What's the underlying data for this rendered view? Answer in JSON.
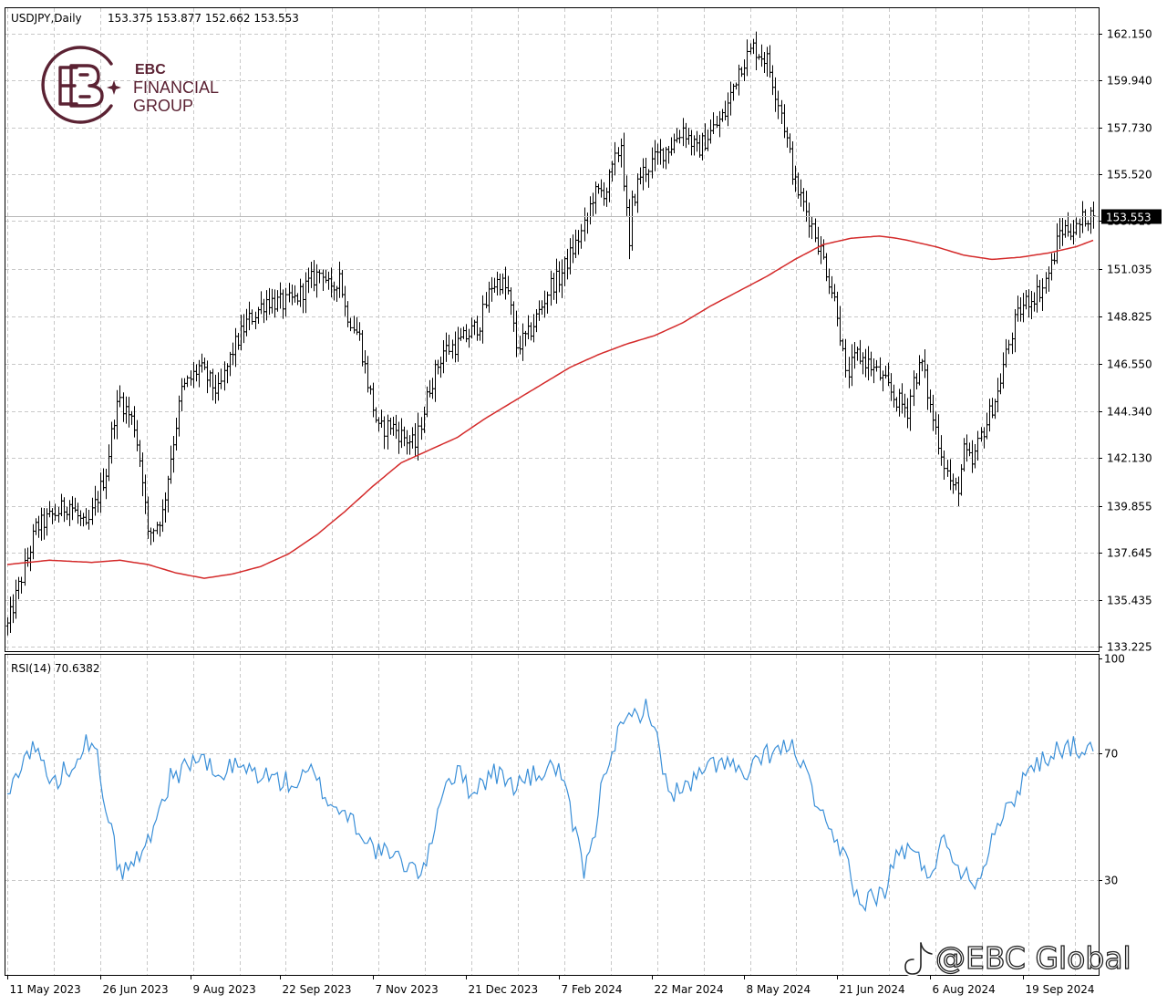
{
  "header": {
    "symbol": "USDJPY,Daily",
    "ohlc": "153.375 153.877 152.662 153.553",
    "rsi": "RSI(14) 70.6382"
  },
  "logo": {
    "line1": "EBC",
    "line2": "FINANCIAL",
    "line3": "GROUP",
    "icon": "ebc-monogram-icon",
    "color": "#5b2233"
  },
  "watermark": {
    "text": "@EBC Global",
    "icon": "tiktok-icon"
  },
  "colors": {
    "ma": "#d42a2a",
    "rsi": "#3a8fd8",
    "candles": "#000000",
    "grid": "#c8c8c8"
  },
  "chart_data": [
    {
      "type": "line",
      "subtype": "bar-ohlc",
      "symbol": "USDJPY",
      "timeframe": "Daily",
      "last_price": 153.553,
      "last_price_label": "153.553",
      "price_ticks": [
        "162.150",
        "159.940",
        "157.730",
        "155.520",
        "153.310",
        "151.035",
        "148.825",
        "146.550",
        "144.340",
        "142.130",
        "139.855",
        "137.645",
        "135.435",
        "133.225"
      ],
      "price_tick_values": [
        162.15,
        159.94,
        157.73,
        155.52,
        153.31,
        151.035,
        148.825,
        146.55,
        144.34,
        142.13,
        139.855,
        137.645,
        135.435,
        133.225
      ],
      "ylim": [
        133.0,
        162.6
      ],
      "x_labels": [
        "11 May 2023",
        "26 Jun 2023",
        "9 Aug 2023",
        "22 Sep 2023",
        "7 Nov 2023",
        "21 Dec 2023",
        "7 Feb 2024",
        "22 Mar 2024",
        "8 May 2024",
        "21 Jun 2024",
        "6 Aug 2024",
        "19 Sep 2024"
      ],
      "x_label_bar_index": [
        0,
        33,
        65,
        97,
        130,
        163,
        196,
        229,
        262,
        295,
        328,
        361
      ],
      "total_bars": 387,
      "price_path_indices": [
        0,
        10,
        22,
        28,
        35,
        38,
        40,
        45,
        48,
        50,
        55,
        58,
        62,
        68,
        75,
        80,
        85,
        92,
        98,
        102,
        108,
        112,
        115,
        118,
        120,
        125,
        128,
        132,
        136,
        140,
        145,
        150,
        155,
        160,
        165,
        168,
        172,
        175,
        178,
        181,
        185,
        190,
        193,
        196,
        200,
        205,
        208,
        213,
        218,
        221,
        222,
        225,
        228,
        232,
        236,
        240,
        245,
        250,
        255,
        260,
        265,
        270,
        275,
        280,
        285,
        290,
        295,
        298,
        302,
        306,
        310,
        315,
        320,
        322,
        325,
        328,
        330,
        333,
        336,
        338,
        340,
        343,
        346,
        348,
        350,
        352,
        354,
        356,
        358,
        360,
        362,
        365,
        368,
        371,
        374,
        377,
        380,
        383,
        386
      ],
      "price_path_values": [
        134.2,
        138.8,
        140.0,
        138.7,
        141.5,
        144.1,
        144.9,
        143.7,
        141.3,
        138.4,
        139.5,
        142.2,
        145.3,
        146.4,
        145.2,
        147.2,
        148.5,
        149.6,
        149.4,
        149.6,
        150.5,
        151.0,
        149.8,
        150.9,
        149.2,
        147.8,
        145.7,
        143.4,
        143.7,
        143.2,
        142.7,
        145.5,
        147.2,
        147.5,
        148.1,
        148.5,
        150.3,
        150.5,
        149.9,
        147.4,
        147.9,
        149.3,
        150.3,
        150.6,
        151.7,
        153.0,
        154.5,
        154.8,
        157.0,
        151.9,
        154.1,
        155.5,
        155.9,
        156.5,
        156.9,
        157.7,
        156.6,
        157.5,
        158.4,
        160.5,
        161.5,
        160.9,
        158.5,
        155.0,
        153.5,
        151.5,
        149.1,
        145.9,
        147.0,
        146.6,
        146.0,
        145.0,
        144.4,
        145.8,
        146.6,
        144.5,
        143.5,
        141.9,
        140.6,
        140.8,
        142.4,
        141.8,
        143.2,
        143.8,
        144.6,
        145.2,
        146.5,
        147.5,
        148.5,
        149.1,
        149.5,
        149.8,
        150.2,
        151.2,
        152.8,
        153.0,
        152.9,
        153.553,
        153.553
      ],
      "ma": {
        "name": "",
        "index": [
          0,
          15,
          30,
          40,
          50,
          60,
          70,
          80,
          90,
          100,
          110,
          120,
          130,
          140,
          150,
          160,
          170,
          180,
          190,
          200,
          210,
          220,
          230,
          240,
          250,
          260,
          270,
          280,
          290,
          300,
          310,
          316,
          320,
          330,
          340,
          350,
          360,
          370,
          380,
          386
        ],
        "values": [
          137.1,
          137.3,
          137.2,
          137.3,
          137.1,
          136.7,
          136.45,
          136.65,
          137.0,
          137.6,
          138.5,
          139.6,
          140.8,
          141.9,
          142.5,
          143.1,
          144.0,
          144.8,
          145.6,
          146.4,
          147.0,
          147.5,
          147.9,
          148.5,
          149.3,
          150.0,
          150.7,
          151.5,
          152.2,
          152.5,
          152.6,
          152.5,
          152.4,
          152.1,
          151.7,
          151.5,
          151.6,
          151.8,
          152.1,
          152.4
        ]
      }
    },
    {
      "type": "line",
      "name": "RSI(14)",
      "last_value": 70.6382,
      "y_ticks": [
        "100",
        "70",
        "30"
      ],
      "y_tick_values": [
        100,
        70,
        30
      ],
      "ylim": [
        0,
        100
      ],
      "path_indices": [
        0,
        5,
        10,
        16,
        22,
        28,
        32,
        40,
        48,
        58,
        68,
        75,
        80,
        88,
        95,
        102,
        108,
        115,
        122,
        130,
        140,
        148,
        155,
        160,
        165,
        173,
        180,
        190,
        196,
        205,
        208,
        212,
        215,
        220,
        228,
        235,
        240,
        245,
        250,
        255,
        262,
        270,
        280,
        286,
        292,
        295,
        298,
        303,
        308,
        312,
        316,
        320,
        328,
        332,
        335,
        340,
        346,
        350,
        356,
        362,
        368,
        374,
        380,
        386
      ],
      "values": [
        55,
        68,
        72,
        60,
        66,
        74,
        68,
        32,
        38,
        62,
        69,
        62,
        66,
        64,
        62,
        60,
        64,
        54,
        50,
        40,
        36,
        32,
        60,
        64,
        58,
        64,
        60,
        64,
        66,
        33,
        40,
        64,
        72,
        80,
        85,
        58,
        58,
        62,
        66,
        68,
        62,
        70,
        72,
        58,
        44,
        40,
        38,
        22,
        25,
        26,
        38,
        40,
        32,
        42,
        40,
        32,
        30,
        46,
        52,
        64,
        68,
        72,
        72,
        70.6
      ]
    }
  ]
}
